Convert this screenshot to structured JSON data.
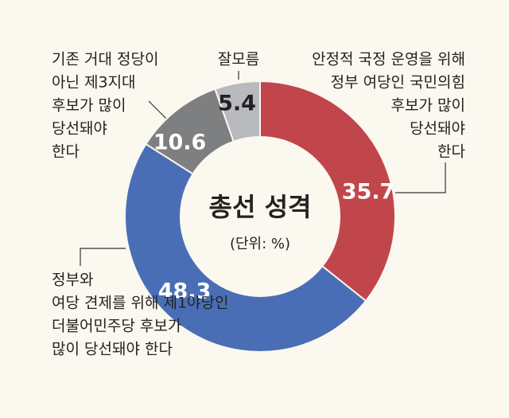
{
  "chart_data": {
    "type": "donut",
    "title": "총선 성격",
    "subtitle": "(단위: %)",
    "categories": [
      [
        "안정적 국정 운영을 위해",
        "정부 여당인 국민의힘",
        "후보가 많이",
        "당선돼야",
        "한다"
      ],
      [
        "정부와",
        "여당 견제를 위해 제1야당인",
        "더불어민주당 후보가",
        "많이 당선돼야 한다"
      ],
      [
        "기존 거대 정당이",
        "아닌 제3지대",
        "후보가 많이",
        "당선돼야",
        "한다"
      ],
      [
        "잘모름"
      ]
    ],
    "values": [
      35.7,
      48.3,
      10.6,
      5.4
    ],
    "colors": [
      "#c1464b",
      "#4a6eb6",
      "#7e7f81",
      "#b9babe"
    ],
    "value_colors": [
      "#ffffff",
      "#ffffff",
      "#ffffff",
      "#222222"
    ]
  }
}
